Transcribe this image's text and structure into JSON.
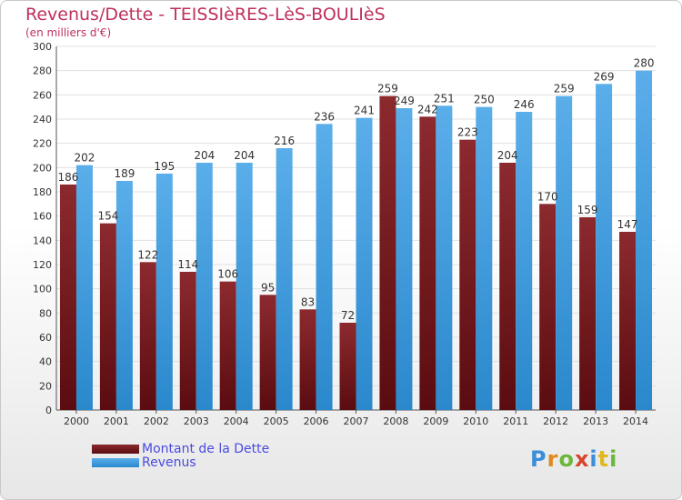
{
  "header": {
    "title": "Revenus/Dette - TEISSIèRES-LèS-BOULIèS",
    "subtitle": "(en milliers d'€)"
  },
  "legend": {
    "debt_label": "Montant de la Dette",
    "revenue_label": "Revenus"
  },
  "logo": {
    "text": "Proxiti"
  },
  "colors": {
    "debt": "#7a1f22",
    "revenue": "#3a9ae0",
    "title": "#c0305c",
    "legend_text": "#4a4ae0",
    "grid": "#e0e0e0"
  },
  "chart_data": {
    "type": "bar",
    "title": "Revenus/Dette - TEISSIèRES-LèS-BOULIèS",
    "subtitle": "(en milliers d'€)",
    "categories": [
      "2000",
      "2001",
      "2002",
      "2003",
      "2004",
      "2005",
      "2006",
      "2007",
      "2008",
      "2009",
      "2010",
      "2011",
      "2012",
      "2013",
      "2014"
    ],
    "series": [
      {
        "name": "Montant de la Dette",
        "values": [
          186,
          154,
          122,
          114,
          106,
          95,
          83,
          72,
          259,
          242,
          223,
          204,
          170,
          159,
          147
        ]
      },
      {
        "name": "Revenus",
        "values": [
          202,
          189,
          195,
          204,
          204,
          216,
          236,
          241,
          249,
          251,
          250,
          246,
          259,
          269,
          280
        ]
      }
    ],
    "ylim": [
      0,
      300
    ],
    "yticks": [
      0,
      20,
      40,
      60,
      80,
      100,
      120,
      140,
      160,
      180,
      200,
      220,
      240,
      260,
      280,
      300
    ],
    "grid": true,
    "legend_position": "bottom-left"
  }
}
